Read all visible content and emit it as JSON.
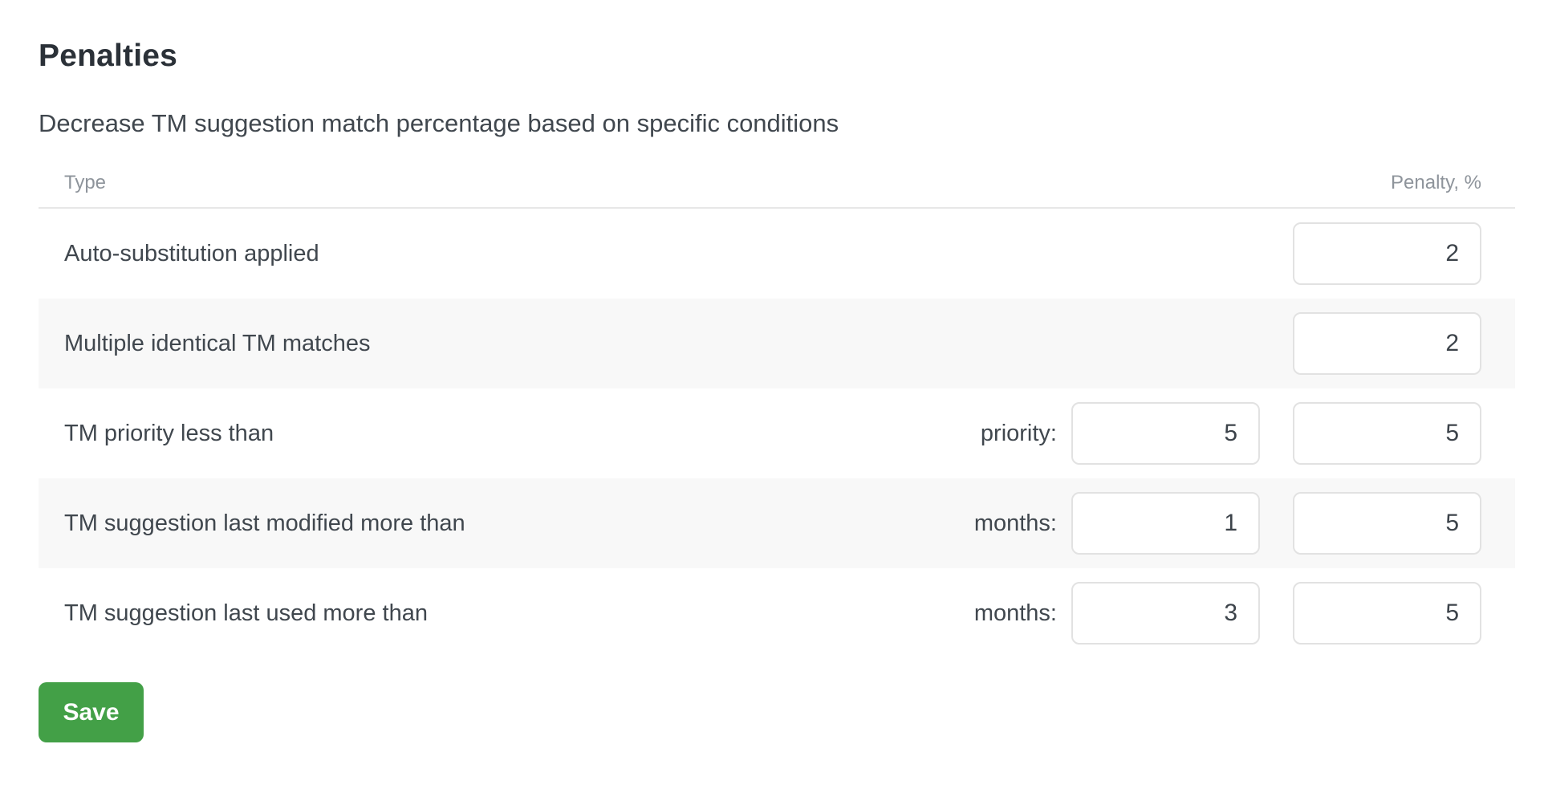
{
  "page": {
    "title": "Penalties",
    "subtitle": "Decrease TM suggestion match percentage based on specific conditions"
  },
  "table": {
    "columns": {
      "type": "Type",
      "penalty": "Penalty, %"
    },
    "rows": [
      {
        "type": "Auto-substitution applied",
        "penalty": "2"
      },
      {
        "type": "Multiple identical TM matches",
        "penalty": "2"
      },
      {
        "type": "TM priority less than",
        "condition_label": "priority:",
        "condition_value": "5",
        "penalty": "5"
      },
      {
        "type": "TM suggestion last modified more than",
        "condition_label": "months:",
        "condition_value": "1",
        "penalty": "5"
      },
      {
        "type": "TM suggestion last used more than",
        "condition_label": "months:",
        "condition_value": "3",
        "penalty": "5"
      }
    ]
  },
  "actions": {
    "save_label": "Save"
  },
  "colors": {
    "save_button_green": "#43a047",
    "row_stripe_gray": "#f8f8f8",
    "header_text_gray": "#8e949b",
    "body_text": "#40474e"
  }
}
